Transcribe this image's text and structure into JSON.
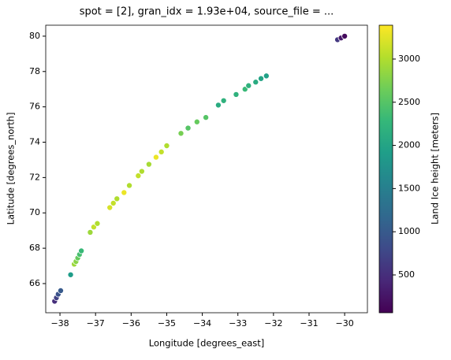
{
  "chart_data": {
    "type": "scatter",
    "title": "spot = [2], gran_idx = 1.93e+04, source_file = ...",
    "xlabel": "Longitude [degrees_east]",
    "ylabel": "Latitude [degrees_north]",
    "colorbar_label": "Land Ice height [meters]",
    "colormap": "viridis",
    "x": [
      -38.15,
      -38.1,
      -38.05,
      -37.98,
      -37.7,
      -37.6,
      -37.55,
      -37.5,
      -37.45,
      -37.4,
      -37.15,
      -37.05,
      -36.95,
      -36.6,
      -36.5,
      -36.4,
      -36.2,
      -36.05,
      -35.8,
      -35.7,
      -35.5,
      -35.3,
      -35.15,
      -35.0,
      -34.6,
      -34.4,
      -34.15,
      -33.9,
      -33.55,
      -33.4,
      -33.05,
      -32.8,
      -32.7,
      -32.5,
      -32.35,
      -32.2,
      -30.2,
      -30.1,
      -30.0
    ],
    "values": [
      65.0,
      65.2,
      65.4,
      65.6,
      66.5,
      67.1,
      67.25,
      67.45,
      67.65,
      67.85,
      68.9,
      69.2,
      69.4,
      70.3,
      70.55,
      70.8,
      71.15,
      71.55,
      72.1,
      72.35,
      72.75,
      73.15,
      73.45,
      73.8,
      74.5,
      74.8,
      75.15,
      75.4,
      76.1,
      76.35,
      76.7,
      77.0,
      77.2,
      77.4,
      77.6,
      77.75,
      79.8,
      79.9,
      80.0
    ],
    "c": [
      500,
      700,
      900,
      1000,
      1900,
      2900,
      2800,
      2600,
      2400,
      2300,
      2900,
      3100,
      3000,
      3200,
      3100,
      3000,
      3300,
      3000,
      3100,
      3000,
      2950,
      3300,
      3100,
      3000,
      2700,
      2500,
      2600,
      2500,
      2100,
      2200,
      2200,
      2300,
      2200,
      2100,
      2000,
      1950,
      600,
      300,
      150
    ],
    "xlim": [
      -38.4,
      -29.36
    ],
    "ylim": [
      64.35,
      80.62
    ],
    "clim": [
      62,
      3392
    ],
    "xticks": [
      {
        "value": -38,
        "label": "−38"
      },
      {
        "value": -37,
        "label": "−37"
      },
      {
        "value": -36,
        "label": "−36"
      },
      {
        "value": -35,
        "label": "−35"
      },
      {
        "value": -34,
        "label": "−34"
      },
      {
        "value": -33,
        "label": "−33"
      },
      {
        "value": -32,
        "label": "−32"
      },
      {
        "value": -31,
        "label": "−31"
      },
      {
        "value": -30,
        "label": "−30"
      }
    ],
    "yticks": [
      66,
      68,
      70,
      72,
      74,
      76,
      78,
      80
    ],
    "cticks": [
      500,
      1000,
      1500,
      2000,
      2500,
      3000
    ]
  }
}
